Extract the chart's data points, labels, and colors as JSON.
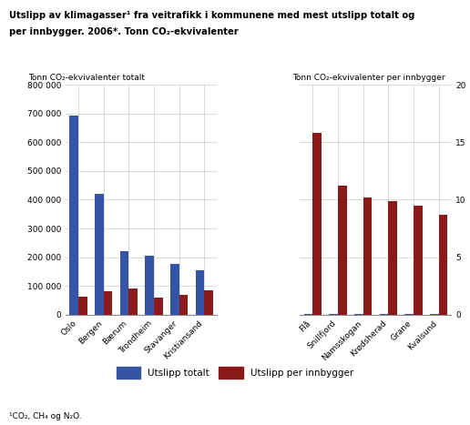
{
  "title_line1": "Utslipp av klimagasser¹ fra veitrafikk i kommunene med mest utslipp totalt og",
  "title_line2": "per innbygger. 2006*. Tonn CO₂-ekvivalenter",
  "left_ylabel": "Tonn CO₂-ekvivalenter totalt",
  "right_ylabel": "Tonn CO₂-ekvivalenter per innbygger",
  "footnote": "¹CO₂, CH₄ og N₂O.",
  "left_categories": [
    "Oslo",
    "Bergen",
    "Bærum",
    "Trondheim",
    "Stavanger",
    "Kristiansand"
  ],
  "left_blue": [
    693000,
    422000,
    220000,
    204000,
    175000,
    155000
  ],
  "left_red": [
    62000,
    80000,
    91000,
    59000,
    67000,
    85000
  ],
  "right_categories": [
    "Flå",
    "Snillfjord",
    "Namsskogan",
    "Krødsherad",
    "Grane",
    "Kvalsund"
  ],
  "right_blue": [
    900,
    700,
    600,
    1200,
    800,
    600
  ],
  "right_red": [
    15.8,
    11.2,
    10.2,
    9.9,
    9.5,
    8.7
  ],
  "left_ylim": [
    0,
    800000
  ],
  "left_yticks": [
    0,
    100000,
    200000,
    300000,
    400000,
    500000,
    600000,
    700000,
    800000
  ],
  "right_ylim": [
    0,
    20
  ],
  "right_yticks": [
    0,
    5,
    10,
    15,
    20
  ],
  "blue_color": "#3554a5",
  "red_color": "#8b1a1a",
  "grid_color": "#cccccc",
  "bg_color": "#ffffff",
  "legend_blue": "Utslipp totalt",
  "legend_red": "Utslipp per innbygger",
  "bar_width": 0.35,
  "left_ytick_labels": [
    "0",
    "100 000",
    "200 000",
    "300 000",
    "400 000",
    "500 000",
    "600 000",
    "700 000",
    "800 000"
  ]
}
